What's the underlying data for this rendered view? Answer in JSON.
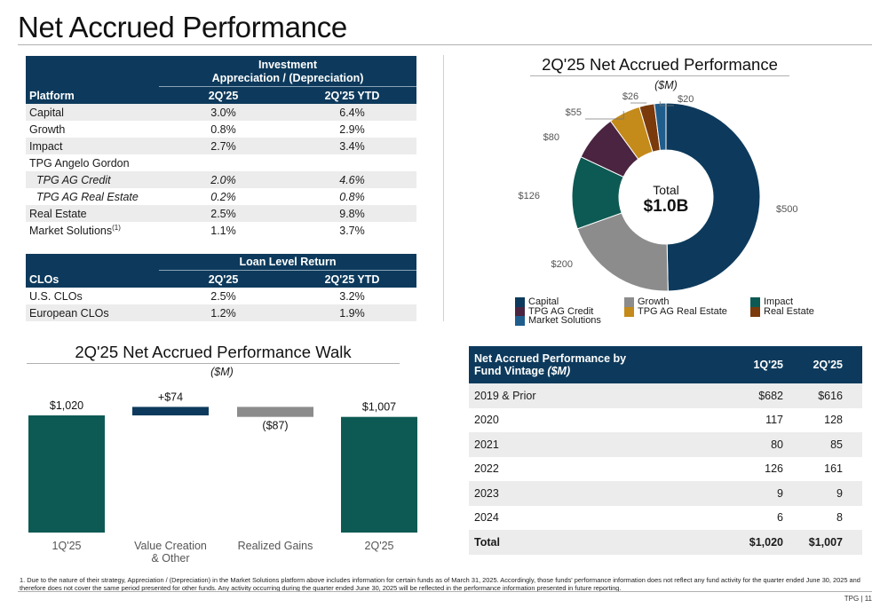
{
  "page": {
    "title": "Net Accrued Performance",
    "page_number": "TPG | 11",
    "footnote": "1. Due to the nature of their strategy, Appreciation / (Depreciation) in the Market Solutions platform above includes information for certain funds as of March 31, 2025. Accordingly, those funds' performance information does not reflect any fund activity for the quarter ended June 30, 2025 and therefore does not cover the same period presented for other funds. Any activity occurring during the quarter ended June 30, 2025 will be reflected in the performance information presented in future reporting."
  },
  "investment_table": {
    "group_header_line1": "Investment",
    "group_header_line2": "Appreciation / (Depreciation)",
    "col1": "Platform",
    "col2": "2Q'25",
    "col3": "2Q'25 YTD",
    "rows": [
      {
        "label": "Capital",
        "q": "3.0%",
        "ytd": "6.4%"
      },
      {
        "label": "Growth",
        "q": "0.8%",
        "ytd": "2.9%"
      },
      {
        "label": "Impact",
        "q": "2.7%",
        "ytd": "3.4%"
      },
      {
        "label": "TPG Angelo Gordon",
        "q": "",
        "ytd": ""
      },
      {
        "label": "TPG AG Credit",
        "q": "2.0%",
        "ytd": "4.6%"
      },
      {
        "label": "TPG AG Real Estate",
        "q": "0.2%",
        "ytd": "0.8%"
      },
      {
        "label": "Real Estate",
        "q": "2.5%",
        "ytd": "9.8%"
      },
      {
        "label": "Market Solutions",
        "sup": "(1)",
        "q": "1.1%",
        "ytd": "3.7%"
      }
    ]
  },
  "loan_table": {
    "group_header": "Loan Level Return",
    "col1": "CLOs",
    "col2": "2Q'25",
    "col3": "2Q'25 YTD",
    "rows": [
      {
        "label": "U.S. CLOs",
        "q": "2.5%",
        "ytd": "3.2%"
      },
      {
        "label": "European CLOs",
        "q": "1.2%",
        "ytd": "1.9%"
      }
    ]
  },
  "walk": {
    "title": "2Q'25 Net Accrued Performance Walk",
    "subtitle": "($M)"
  },
  "donut": {
    "title": "2Q'25 Net Accrued Performance",
    "subtitle": "($M)",
    "center_label": "Total",
    "center_value": "$1.0B"
  },
  "vintage_table": {
    "header_line1": "Net Accrued Performance by",
    "header_line2a": "Fund Vintage ",
    "header_line2b": "($M)",
    "col2": "1Q'25",
    "col3": "2Q'25",
    "rows": [
      {
        "label": "2019 & Prior",
        "q1": "$682",
        "q2": "$616"
      },
      {
        "label": "2020",
        "q1": "117",
        "q2": "128"
      },
      {
        "label": "2021",
        "q1": "80",
        "q2": "85"
      },
      {
        "label": "2022",
        "q1": "126",
        "q2": "161"
      },
      {
        "label": "2023",
        "q1": "9",
        "q2": "9"
      },
      {
        "label": "2024",
        "q1": "6",
        "q2": "8"
      }
    ],
    "total": {
      "label": "Total",
      "q1": "$1,020",
      "q2": "$1,007"
    }
  },
  "chart_data": [
    {
      "type": "bar",
      "subtype": "waterfall",
      "title": "2Q'25 Net Accrued Performance Walk",
      "ylabel": "($M)",
      "categories": [
        "1Q'25",
        "Value Creation & Other",
        "Realized Gains",
        "2Q'25"
      ],
      "values": [
        1020,
        74,
        -87,
        1007
      ],
      "labels": [
        "$1,020",
        "+$74",
        "($87)",
        "$1,007"
      ],
      "colors": [
        "#0d5a54",
        "#0d3a5c",
        "#8c8c8c",
        "#0d5a54"
      ]
    },
    {
      "type": "pie",
      "subtype": "donut",
      "title": "2Q'25 Net Accrued Performance",
      "subtitle": "($M)",
      "center_label": "Total",
      "center_value": "$1.0B",
      "legend_position": "bottom",
      "slices": [
        {
          "name": "Capital",
          "value": 500,
          "label": "$500",
          "color": "#0d3a5c"
        },
        {
          "name": "Growth",
          "value": 200,
          "label": "$200",
          "color": "#8c8c8c"
        },
        {
          "name": "Impact",
          "value": 126,
          "label": "$126",
          "color": "#0d5a54"
        },
        {
          "name": "TPG AG Credit",
          "value": 80,
          "label": "$80",
          "color": "#4a2440"
        },
        {
          "name": "TPG AG Real Estate",
          "value": 55,
          "label": "$55",
          "color": "#c48a1a"
        },
        {
          "name": "Real Estate",
          "value": 26,
          "label": "$26",
          "color": "#7a3a0c"
        },
        {
          "name": "Market Solutions",
          "value": 20,
          "label": "$20",
          "color": "#1f5d8c"
        }
      ]
    }
  ]
}
